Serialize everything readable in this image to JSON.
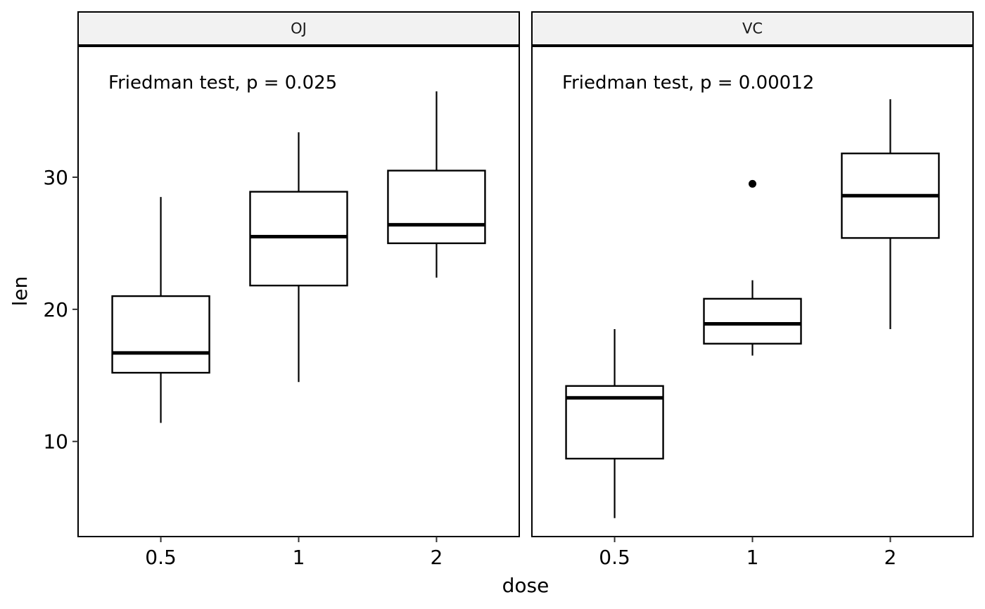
{
  "chart_data": {
    "type": "boxplot",
    "xlabel": "dose",
    "ylabel": "len",
    "ylim": [
      2.8,
      39.9
    ],
    "yticks": [
      10,
      20,
      30
    ],
    "categories": [
      "0.5",
      "1",
      "2"
    ],
    "panels": [
      {
        "label": "OJ",
        "annotation": "Friedman test, p = 0.025",
        "boxes": [
          {
            "category": "0.5",
            "whisker_low": 11.4,
            "q1": 15.2,
            "median": 16.7,
            "q3": 21.0,
            "whisker_high": 28.5,
            "outliers": []
          },
          {
            "category": "1",
            "whisker_low": 14.5,
            "q1": 21.8,
            "median": 25.5,
            "q3": 28.9,
            "whisker_high": 33.4,
            "outliers": []
          },
          {
            "category": "2",
            "whisker_low": 22.4,
            "q1": 25.0,
            "median": 26.4,
            "q3": 30.5,
            "whisker_high": 36.5,
            "outliers": []
          }
        ]
      },
      {
        "label": "VC",
        "annotation": "Friedman test, p = 0.00012",
        "boxes": [
          {
            "category": "0.5",
            "whisker_low": 4.2,
            "q1": 8.7,
            "median": 13.3,
            "q3": 14.2,
            "whisker_high": 18.5,
            "outliers": []
          },
          {
            "category": "1",
            "whisker_low": 16.5,
            "q1": 17.4,
            "median": 18.9,
            "q3": 20.8,
            "whisker_high": 22.2,
            "outliers": [
              29.5
            ]
          },
          {
            "category": "2",
            "whisker_low": 18.5,
            "q1": 25.4,
            "median": 28.6,
            "q3": 31.8,
            "whisker_high": 35.9,
            "outliers": []
          }
        ]
      }
    ]
  }
}
